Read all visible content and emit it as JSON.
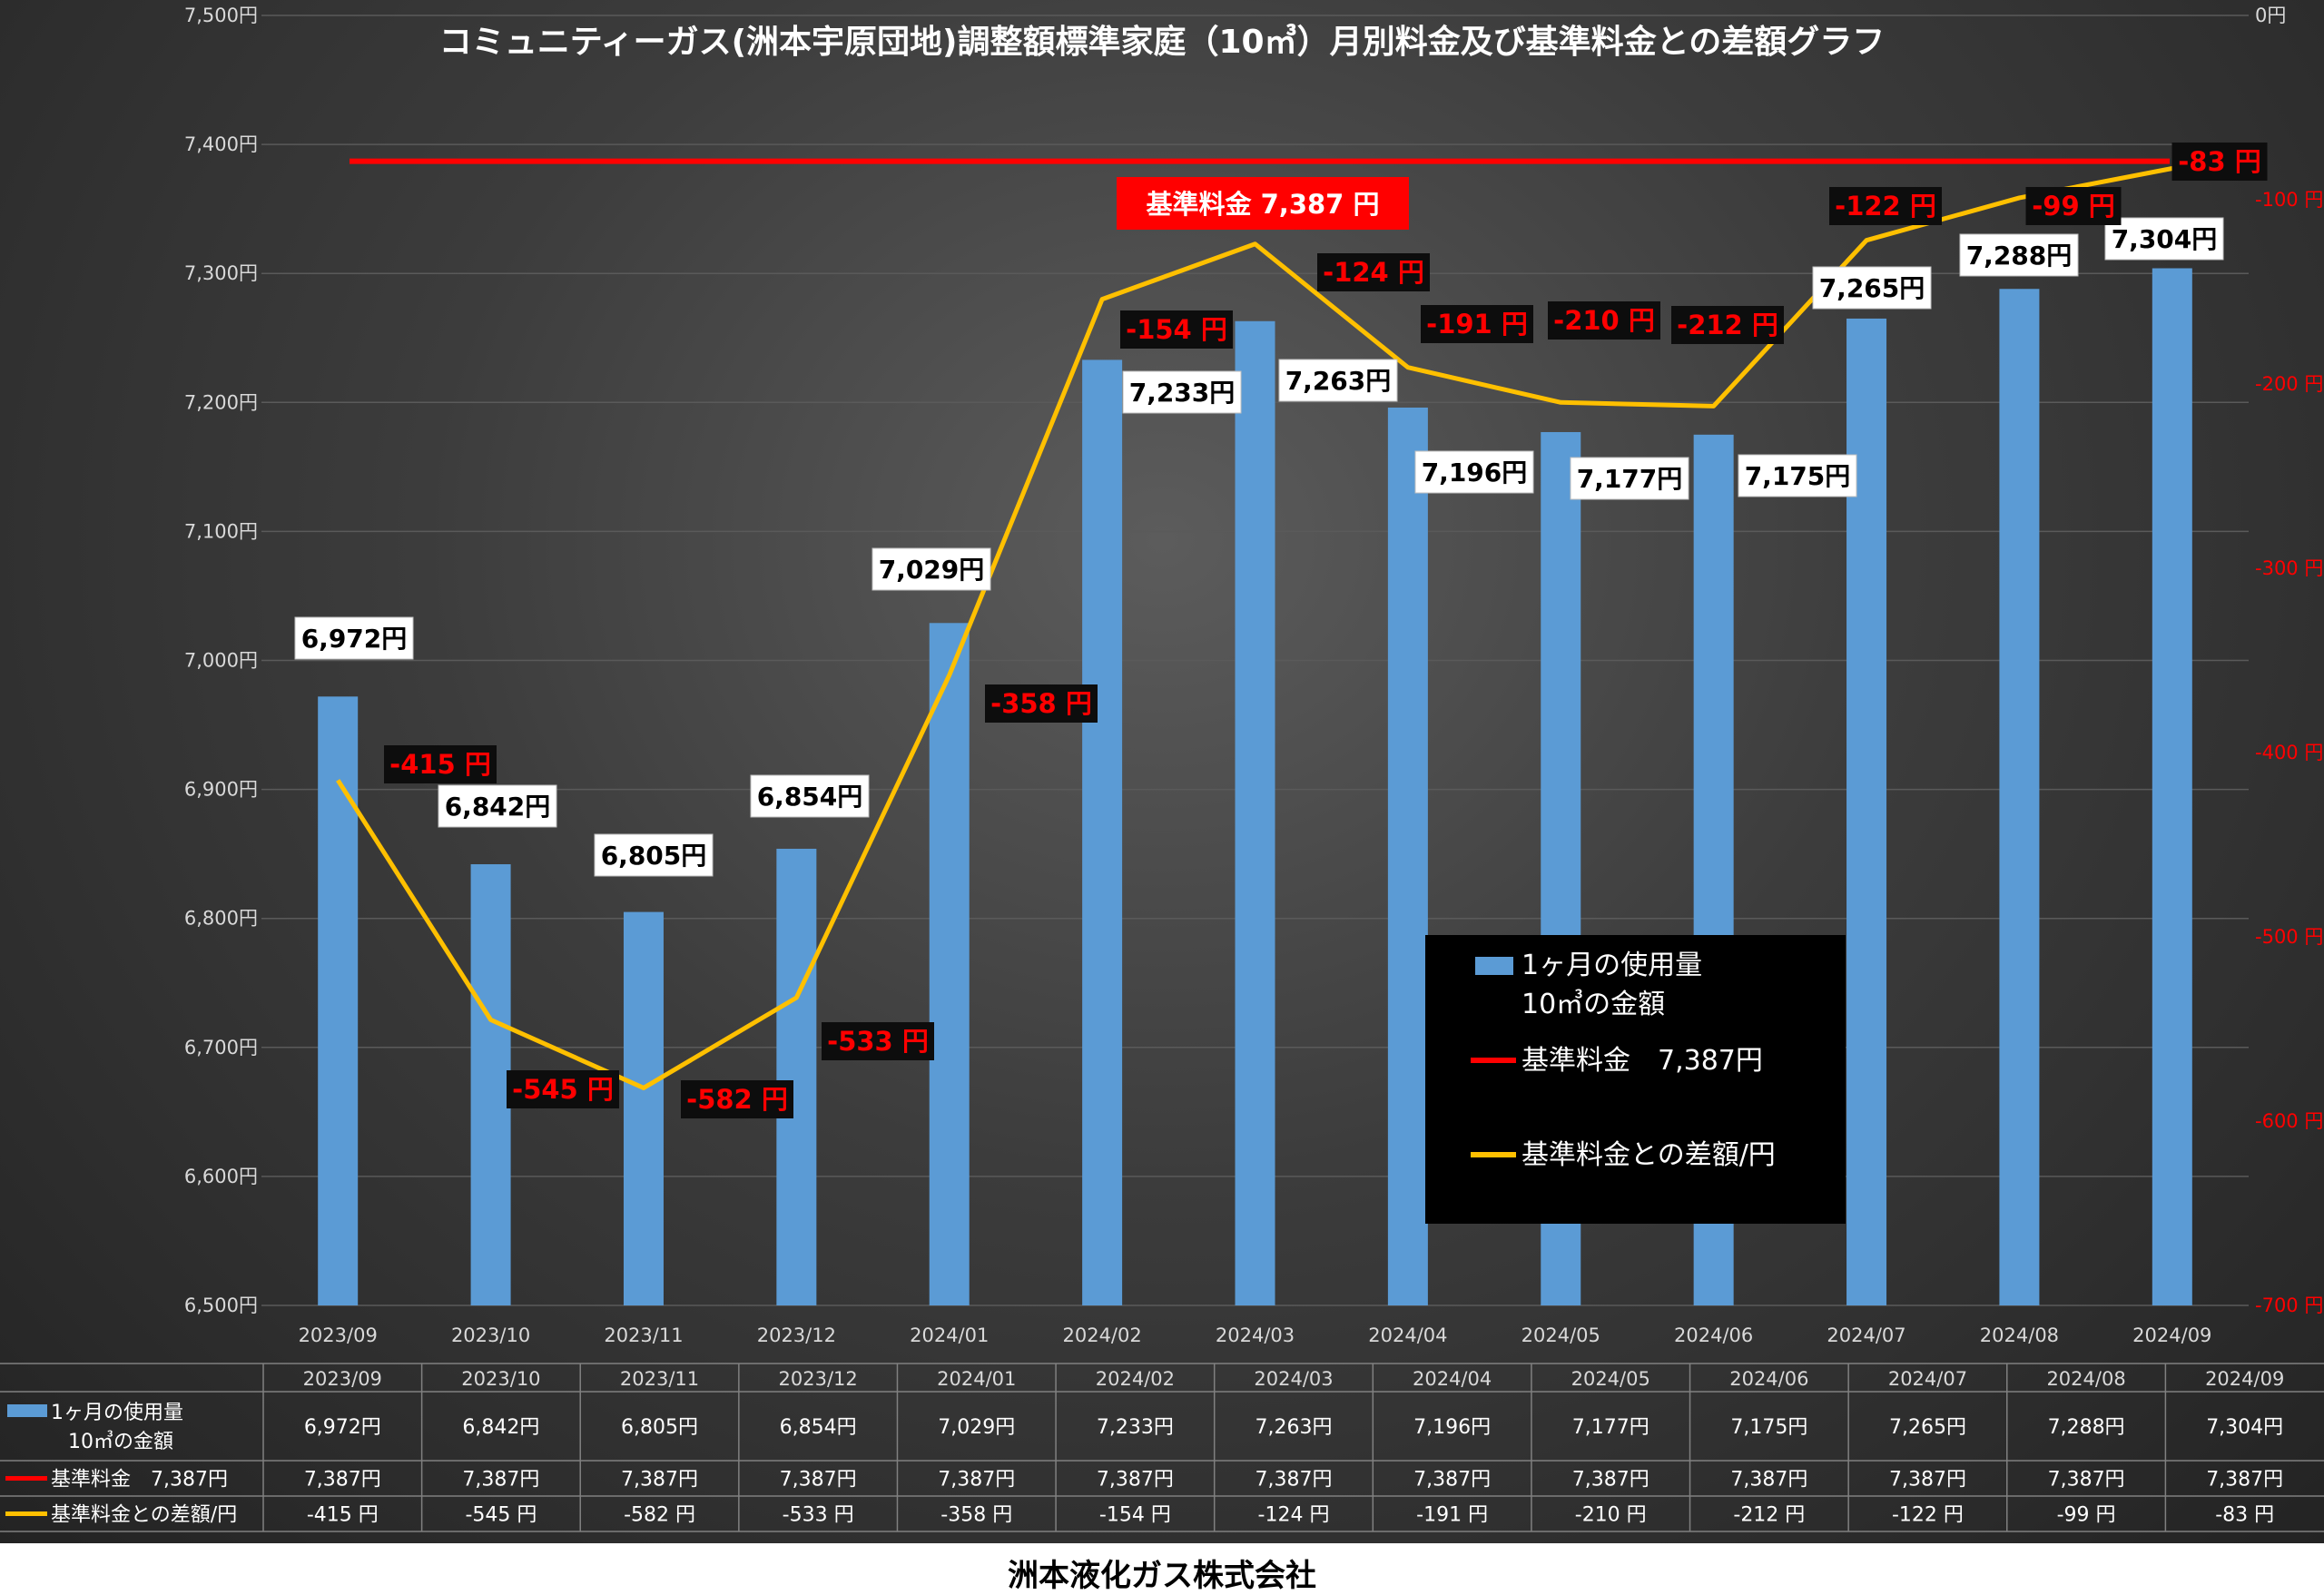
{
  "chart_data": {
    "type": "bar",
    "title": "コミュニティーガス(洲本宇原団地)調整額標準家庭（10㎥）月別料金及び基準料金との差額グラフ",
    "categories": [
      "2023/09",
      "2023/10",
      "2023/11",
      "2023/12",
      "2024/01",
      "2024/02",
      "2024/03",
      "2024/04",
      "2024/05",
      "2024/06",
      "2024/07",
      "2024/08",
      "2024/09"
    ],
    "ylim": [
      6500,
      7500
    ],
    "y_ticks": [
      "6,500円",
      "6,600円",
      "6,700円",
      "6,800円",
      "6,900円",
      "7,000円",
      "7,100円",
      "7,200円",
      "7,300円",
      "7,400円",
      "7,500円"
    ],
    "y2lim": [
      -700,
      0
    ],
    "y2_ticks": [
      "-700 円",
      "-600 円",
      "-500 円",
      "-400 円",
      "-300 円",
      "-200 円",
      "-100 円",
      "0円"
    ],
    "grid": true,
    "legend_position": "bottom-right",
    "series": [
      {
        "name": "1ヶ月の使用量 10㎥の金額",
        "type": "bar",
        "axis": "left",
        "color": "#5b9bd5",
        "values": [
          6972,
          6842,
          6805,
          6854,
          7029,
          7233,
          7263,
          7196,
          7177,
          7175,
          7265,
          7288,
          7304
        ],
        "labels": [
          "6,972円",
          "6,842円",
          "6,805円",
          "6,854円",
          "7,029円",
          "7,233円",
          "7,263円",
          "7,196円",
          "7,177円",
          "7,175円",
          "7,265円",
          "7,288円",
          "7,304円"
        ]
      },
      {
        "name": "基準料金 7,387円",
        "type": "line",
        "axis": "left",
        "color": "#ff0000",
        "value": 7387,
        "annotation": "基準料金  7,387  円"
      },
      {
        "name": "基準料金との差額/円",
        "type": "line",
        "axis": "right",
        "color": "#ffc000",
        "values": [
          -415,
          -545,
          -582,
          -533,
          -358,
          -154,
          -124,
          -191,
          -210,
          -212,
          -122,
          -99,
          -83
        ],
        "labels": [
          "-415 円",
          "-545 円",
          "-582 円",
          "-533 円",
          "-358 円",
          "-154 円",
          "-124 円",
          "-191 円",
          "-210 円",
          "-212 円",
          "-122 円",
          "-99 円",
          "-83 円"
        ]
      }
    ],
    "legend": {
      "bar_line1": "1ヶ月の使用量",
      "bar_line2": "10㎥の金額",
      "base": "基準料金　7,387円",
      "diff": "基準料金との差額/円"
    },
    "table": {
      "headers": [
        "2023/09",
        "2023/10",
        "2023/11",
        "2023/12",
        "2024/01",
        "2024/02",
        "2024/03",
        "2024/04",
        "2024/05",
        "2024/06",
        "2024/07",
        "2024/08",
        "2024/09"
      ],
      "rows": [
        {
          "label1": "1ヶ月の使用量",
          "label2": "10㎥の金額",
          "color": "#5b9bd5",
          "values": [
            "6,972円",
            "6,842円",
            "6,805円",
            "6,854円",
            "7,029円",
            "7,233円",
            "7,263円",
            "7,196円",
            "7,177円",
            "7,175円",
            "7,265円",
            "7,288円",
            "7,304円"
          ]
        },
        {
          "label1": "基準料金　7,387円",
          "label2": "",
          "color": "#ff0000",
          "values": [
            "7,387円",
            "7,387円",
            "7,387円",
            "7,387円",
            "7,387円",
            "7,387円",
            "7,387円",
            "7,387円",
            "7,387円",
            "7,387円",
            "7,387円",
            "7,387円",
            "7,387円"
          ]
        },
        {
          "label1": "基準料金との差額/円",
          "label2": "",
          "color": "#ffc000",
          "values": [
            "-415 円",
            "-545 円",
            "-582 円",
            "-533 円",
            "-358 円",
            "-154 円",
            "-124 円",
            "-191 円",
            "-210 円",
            "-212 円",
            "-122 円",
            "-99 円",
            "-83 円"
          ]
        }
      ]
    }
  },
  "footer": "洲本液化ガス株式会社"
}
